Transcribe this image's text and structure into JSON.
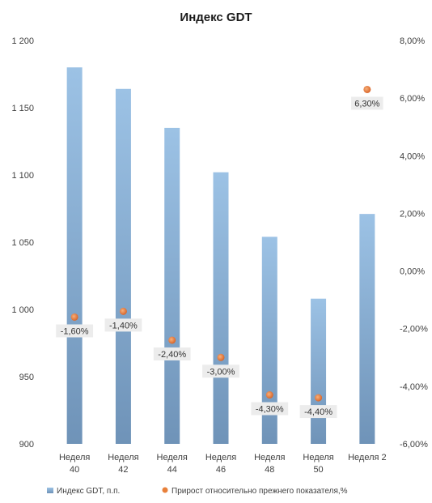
{
  "chart_data": {
    "type": "bar",
    "title": "Индекс GDT",
    "categories": [
      [
        "Неделя",
        "40"
      ],
      [
        "Неделя",
        "42"
      ],
      [
        "Неделя",
        "44"
      ],
      [
        "Неделя",
        "46"
      ],
      [
        "Неделя",
        "48"
      ],
      [
        "Неделя",
        "50"
      ],
      [
        "Неделя 2"
      ]
    ],
    "series": [
      {
        "name": "Индекс GDT, п.п.",
        "type": "bar",
        "axis": "left",
        "color": "#8db4d9",
        "values": [
          1180,
          1164,
          1135,
          1102,
          1054,
          1008,
          1071
        ]
      },
      {
        "name": "Прирост относительно прежнего показателя,%",
        "type": "scatter",
        "axis": "right",
        "color": "#e8803a",
        "values": [
          -1.6,
          -1.4,
          -2.4,
          -3.0,
          -4.3,
          -4.4,
          6.3
        ],
        "labels": [
          "-1,60%",
          "-1,40%",
          "-2,40%",
          "-3,00%",
          "-4,30%",
          "-4,40%",
          "6,30%"
        ]
      }
    ],
    "y_left": {
      "ylim": [
        900,
        1200
      ],
      "ticks": [
        900,
        950,
        1000,
        1050,
        1100,
        1150,
        1200
      ],
      "tick_labels": [
        "900",
        "950",
        "1 000",
        "1 050",
        "1 100",
        "1 150",
        "1 200"
      ]
    },
    "y_right": {
      "ylim": [
        -6,
        8
      ],
      "ticks": [
        -6,
        -4,
        -2,
        0,
        2,
        4,
        6,
        8
      ],
      "tick_labels": [
        "-6,00%",
        "-4,00%",
        "-2,00%",
        "0,00%",
        "2,00%",
        "4,00%",
        "6,00%",
        "8,00%"
      ]
    },
    "legend": "bottom",
    "grid": false
  }
}
